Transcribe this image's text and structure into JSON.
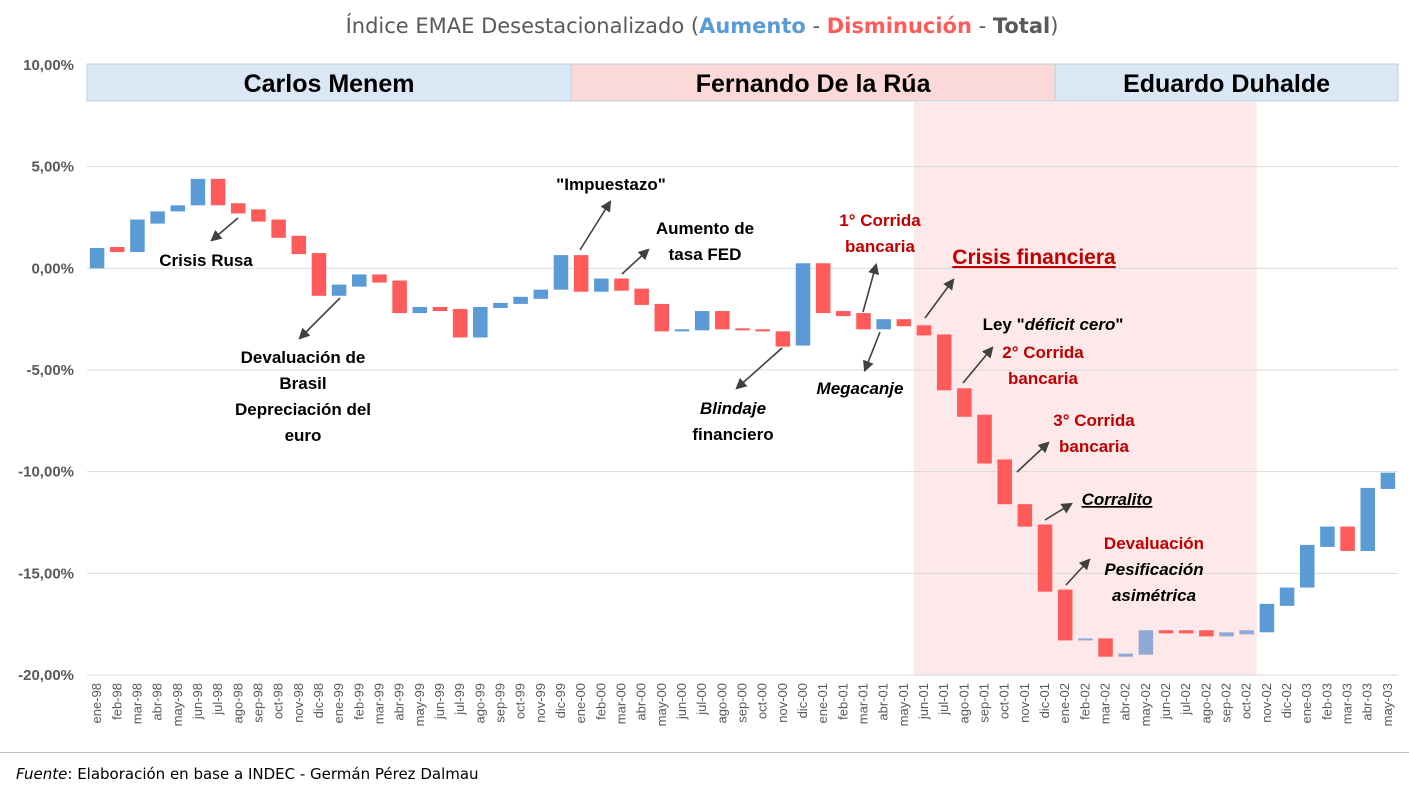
{
  "chart_data": {
    "type": "waterfall",
    "title": {
      "prefix": "Índice EMAE Desestacionalizado (",
      "increase": "Aumento",
      "sep1": " - ",
      "decrease": "Disminución",
      "sep2": " - ",
      "total": "Total",
      "suffix": ")"
    },
    "ylim": [
      -20,
      10
    ],
    "yticks": [
      10,
      5,
      0,
      -5,
      -10,
      -15,
      -20
    ],
    "ytick_labels": [
      "10,00%",
      "5,00%",
      "0,00%",
      "-5,00%",
      "-10,00%",
      "-15,00%",
      "-20,00%"
    ],
    "grid": true,
    "legend": "title",
    "colors": {
      "increase": "#5b9bd5",
      "decrease": "#ff5b5b",
      "total": "#a5a5a5"
    },
    "categories": [
      "ene-98",
      "feb-98",
      "mar-98",
      "abr-98",
      "may-98",
      "jun-98",
      "jul-98",
      "ago-98",
      "sep-98",
      "oct-98",
      "nov-98",
      "dic-98",
      "ene-99",
      "feb-99",
      "mar-99",
      "abr-99",
      "may-99",
      "jun-99",
      "jul-99",
      "ago-99",
      "sep-99",
      "oct-99",
      "nov-99",
      "dic-99",
      "ene-00",
      "feb-00",
      "mar-00",
      "abr-00",
      "may-00",
      "jun-00",
      "jul-00",
      "ago-00",
      "sep-00",
      "oct-00",
      "nov-00",
      "dic-00",
      "ene-01",
      "feb-01",
      "mar-01",
      "abr-01",
      "may-01",
      "jun-01",
      "jul-01",
      "ago-01",
      "sep-01",
      "oct-01",
      "nov-01",
      "dic-01",
      "ene-02",
      "feb-02",
      "mar-02",
      "abr-02",
      "may-02",
      "jun-02",
      "jul-02",
      "ago-02",
      "sep-02",
      "oct-02",
      "nov-02",
      "dic-02",
      "ene-03",
      "feb-03",
      "mar-03",
      "abr-03",
      "may-03"
    ],
    "bars": [
      [
        0,
        1.0,
        "up"
      ],
      [
        0.8,
        1.05,
        "down"
      ],
      [
        0.8,
        2.4,
        "up"
      ],
      [
        2.2,
        2.8,
        "up"
      ],
      [
        2.8,
        3.1,
        "up"
      ],
      [
        3.1,
        4.4,
        "up"
      ],
      [
        3.1,
        4.4,
        "down"
      ],
      [
        2.7,
        3.2,
        "down"
      ],
      [
        2.3,
        2.9,
        "down"
      ],
      [
        1.5,
        2.4,
        "down"
      ],
      [
        0.7,
        1.6,
        "down"
      ],
      [
        -1.35,
        0.75,
        "down"
      ],
      [
        -1.35,
        -0.8,
        "up"
      ],
      [
        -0.9,
        -0.3,
        "up"
      ],
      [
        -0.7,
        -0.3,
        "down"
      ],
      [
        -2.2,
        -0.6,
        "down"
      ],
      [
        -2.2,
        -1.9,
        "up"
      ],
      [
        -2.1,
        -1.9,
        "down"
      ],
      [
        -3.4,
        -2.0,
        "down"
      ],
      [
        -3.4,
        -1.9,
        "up"
      ],
      [
        -1.95,
        -1.7,
        "up"
      ],
      [
        -1.75,
        -1.4,
        "up"
      ],
      [
        -1.5,
        -1.05,
        "up"
      ],
      [
        -1.05,
        0.65,
        "up"
      ],
      [
        -1.15,
        0.65,
        "down"
      ],
      [
        -1.15,
        -0.5,
        "up"
      ],
      [
        -1.1,
        -0.5,
        "down"
      ],
      [
        -1.8,
        -1.0,
        "down"
      ],
      [
        -3.1,
        -1.75,
        "down"
      ],
      [
        -3.1,
        -3.0,
        "up"
      ],
      [
        -3.05,
        -2.1,
        "up"
      ],
      [
        -3.0,
        -2.1,
        "down"
      ],
      [
        -3.05,
        -2.95,
        "down"
      ],
      [
        -3.1,
        -3.0,
        "down"
      ],
      [
        -3.85,
        -3.1,
        "down"
      ],
      [
        -3.8,
        0.25,
        "up"
      ],
      [
        -2.2,
        0.25,
        "down"
      ],
      [
        -2.35,
        -2.1,
        "down"
      ],
      [
        -3.0,
        -2.2,
        "down"
      ],
      [
        -3.0,
        -2.5,
        "up"
      ],
      [
        -2.85,
        -2.5,
        "down"
      ],
      [
        -3.3,
        -2.8,
        "down"
      ],
      [
        -6.0,
        -3.25,
        "down"
      ],
      [
        -7.3,
        -5.9,
        "down"
      ],
      [
        -9.6,
        -7.2,
        "down"
      ],
      [
        -11.6,
        -9.4,
        "down"
      ],
      [
        -12.7,
        -11.6,
        "down"
      ],
      [
        -15.9,
        -12.6,
        "down"
      ],
      [
        -18.3,
        -15.8,
        "down"
      ],
      [
        -18.3,
        -18.2,
        "total"
      ],
      [
        -19.1,
        -18.2,
        "down"
      ],
      [
        -19.1,
        -18.95,
        "total"
      ],
      [
        -19.0,
        -17.8,
        "total"
      ],
      [
        -17.95,
        -17.8,
        "down"
      ],
      [
        -17.95,
        -17.8,
        "down"
      ],
      [
        -18.1,
        -17.8,
        "down"
      ],
      [
        -18.1,
        -17.9,
        "total"
      ],
      [
        -18.0,
        -17.8,
        "total"
      ],
      [
        -17.9,
        -16.5,
        "up"
      ],
      [
        -16.6,
        -15.7,
        "up"
      ],
      [
        -15.7,
        -13.6,
        "up"
      ],
      [
        -13.7,
        -12.7,
        "up"
      ],
      [
        -13.9,
        -12.7,
        "down"
      ],
      [
        -13.9,
        -10.8,
        "up"
      ],
      [
        -10.85,
        -10.05,
        "up"
      ]
    ],
    "eras": [
      {
        "label": "Carlos Menem",
        "from": 0,
        "to": 23,
        "color": "#dae8f6"
      },
      {
        "label": "Fernando De la Rúa",
        "from": 24,
        "to": 47,
        "color": "#fcd9d9"
      },
      {
        "label": "Eduardo Duhalde",
        "from": 48,
        "to": 64,
        "color": "#dae8f6"
      }
    ],
    "crisis_band": {
      "from": 41,
      "to": 57,
      "color": "#fde9e9"
    },
    "annotations": [
      {
        "id": "crisis-rusa",
        "lines": [
          "Crisis Rusa"
        ],
        "color": "#000000",
        "style": "bold"
      },
      {
        "id": "devaluacion-brasil",
        "lines": [
          "Devaluación de",
          "Brasil",
          "Depreciación del",
          "euro"
        ],
        "color": "#000000",
        "style": "bold"
      },
      {
        "id": "impuestazo",
        "lines": [
          "\"Impuestazo\""
        ],
        "color": "#000000",
        "style": "bold"
      },
      {
        "id": "aumento-fed",
        "lines": [
          "Aumento de",
          "tasa FED"
        ],
        "color": "#000000",
        "style": "bold"
      },
      {
        "id": "blindaje",
        "lines": [
          "Blindaje",
          "financiero"
        ],
        "color": "#000000",
        "style": "bold",
        "italic_line": 0
      },
      {
        "id": "corrida-1",
        "lines": [
          "1° Corrida",
          "bancaria"
        ],
        "color": "#c00000",
        "style": "bold"
      },
      {
        "id": "megacanje",
        "lines": [
          "Megacanje"
        ],
        "color": "#000000",
        "style": "bold-italic"
      },
      {
        "id": "crisis-financiera",
        "lines": [
          "Crisis financiera"
        ],
        "color": "#c00000",
        "style": "big-underline"
      },
      {
        "id": "deficit-cero",
        "lines": [
          "Ley \"",
          "déficit cero",
          "\""
        ],
        "color": "#000000",
        "style": "bold"
      },
      {
        "id": "corrida-2",
        "lines": [
          "2° Corrida",
          "bancaria"
        ],
        "color": "#c00000",
        "style": "bold"
      },
      {
        "id": "corrida-3",
        "lines": [
          "3° Corrida",
          "bancaria"
        ],
        "color": "#c00000",
        "style": "bold"
      },
      {
        "id": "corralito",
        "lines": [
          "Corralito"
        ],
        "color": "#000000",
        "style": "bold-italic-underline"
      },
      {
        "id": "devaluacion-2002",
        "lines": [
          "Devaluación",
          "Pesificación",
          "asimétrica"
        ],
        "color": "#c00000",
        "style": "mixed"
      }
    ]
  },
  "footer": {
    "source_label": "Fuente",
    "source_text": ": Elaboración en base a INDEC - Germán Pérez Dalmau"
  }
}
